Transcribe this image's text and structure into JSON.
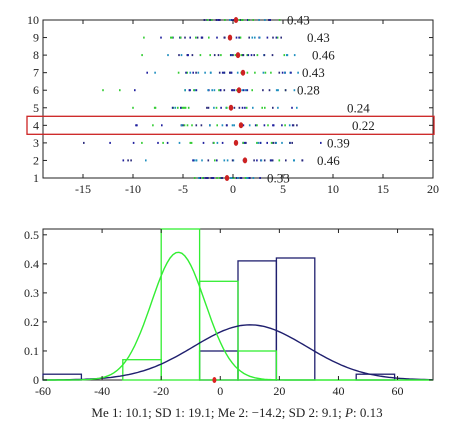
{
  "colors": {
    "series_1": "#1f1f6e",
    "series_2": "#33ee33",
    "highlight_box": "#cc2222",
    "point_marker": "#dd2222",
    "median_marker": "#cc2222",
    "dot_colors": [
      "#1f1f9e",
      "#33cc33",
      "#1f8fbf",
      "#2a2a7a"
    ]
  },
  "caption": {
    "me1_label": "Me 1: 10.1; SD 1: 19.1; Me 2: −14.2; SD 2: 9.1; ",
    "p_label": "P",
    "p_value": ": 0.13"
  },
  "chart_data": [
    {
      "type": "scatter",
      "title": "",
      "xlabel": "",
      "ylabel": "",
      "xlim": [
        -19,
        20
      ],
      "ylim": [
        1,
        10
      ],
      "x_ticks": [
        -15,
        -10,
        -5,
        0,
        5,
        10,
        15,
        20
      ],
      "y_ticks": [
        1,
        2,
        3,
        4,
        5,
        6,
        7,
        8,
        9,
        10
      ],
      "grid": false,
      "rows": [
        {
          "y": 10,
          "center": 0.3,
          "left": -2.5,
          "right": 5,
          "label": "0.43"
        },
        {
          "y": 9,
          "center": -0.3,
          "left": -10,
          "right": 7,
          "label": "0.43"
        },
        {
          "y": 8,
          "center": 0.5,
          "left": -10,
          "right": 7.5,
          "label": "0.46"
        },
        {
          "y": 7,
          "center": 1.0,
          "left": -10,
          "right": 6.5,
          "label": "0.43"
        },
        {
          "y": 6,
          "center": 0.6,
          "left": -13,
          "right": 6,
          "label": "0.28"
        },
        {
          "y": 5,
          "center": -0.2,
          "left": -10,
          "right": 11,
          "label": "0.24"
        },
        {
          "y": 4,
          "center": 0.8,
          "left": -10,
          "right": 11.5,
          "label": "0.22"
        },
        {
          "y": 3,
          "center": 0.3,
          "left": -16,
          "right": 9,
          "label": "0.39"
        },
        {
          "y": 2,
          "center": 1.2,
          "left": -13,
          "right": 8,
          "label": "0.46"
        },
        {
          "y": 1,
          "center": -0.6,
          "left": -4,
          "right": 3,
          "label": "0.33"
        }
      ],
      "highlighted_row": 4
    },
    {
      "type": "bar",
      "title": "",
      "xlabel": "",
      "ylabel": "",
      "xlim": [
        -60,
        72
      ],
      "ylim": [
        0,
        0.52
      ],
      "x_ticks": [
        -60,
        -40,
        -20,
        0,
        20,
        40,
        60
      ],
      "y_ticks": [
        0,
        0.1,
        0.2,
        0.3,
        0.4,
        0.5
      ],
      "grid": false,
      "series": [
        {
          "name": "",
          "kind": "histogram",
          "color_key": "series_1",
          "bins": [
            {
              "x0": -60,
              "x1": -47,
              "value": 0.02
            },
            {
              "x0": -47,
              "x1": -33,
              "value": 0.0
            },
            {
              "x0": -33,
              "x1": -20,
              "value": 0.0
            },
            {
              "x0": -20,
              "x1": -7,
              "value": 0.0
            },
            {
              "x0": -7,
              "x1": 6,
              "value": 0.1
            },
            {
              "x0": 6,
              "x1": 19,
              "value": 0.41
            },
            {
              "x0": 19,
              "x1": 32,
              "value": 0.42
            },
            {
              "x0": 32,
              "x1": 46,
              "value": 0.0
            },
            {
              "x0": 46,
              "x1": 59,
              "value": 0.02
            }
          ]
        },
        {
          "name": "",
          "kind": "histogram",
          "color_key": "series_2",
          "bins": [
            {
              "x0": -33,
              "x1": -20,
              "value": 0.07
            },
            {
              "x0": -20,
              "x1": -7,
              "value": 0.52
            },
            {
              "x0": -7,
              "x1": 6,
              "value": 0.34
            },
            {
              "x0": 6,
              "x1": 19,
              "value": 0.1
            }
          ]
        },
        {
          "name": "",
          "kind": "normal_curve",
          "color_key": "series_1",
          "mean": 10.1,
          "sd": 19.1,
          "peak": 0.19
        },
        {
          "name": "",
          "kind": "normal_curve",
          "color_key": "series_2",
          "mean": -14.2,
          "sd": 9.1,
          "peak": 0.44
        }
      ],
      "marker_x": -2
    }
  ]
}
